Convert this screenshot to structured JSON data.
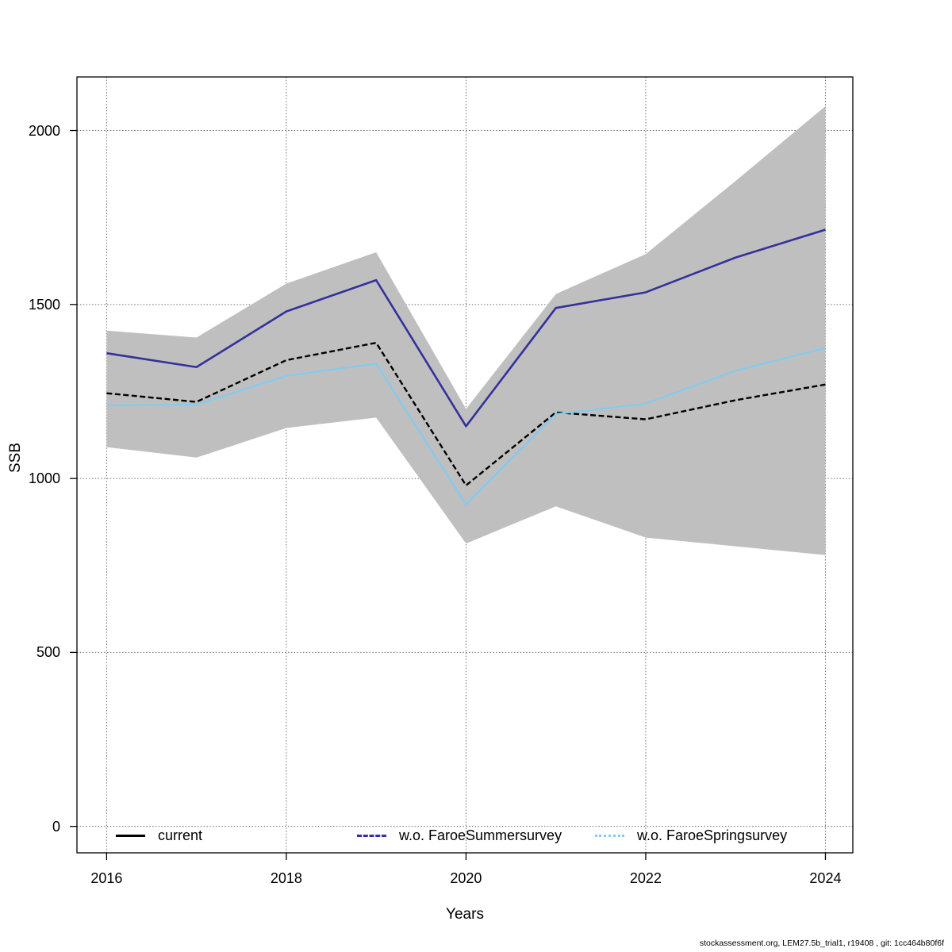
{
  "footer": {
    "text": "stockassessment.org, LEM27.5b_trial1, r19408 , git: 1cc464b80f6f"
  },
  "chart_data": {
    "type": "line",
    "title": "",
    "xlabel": "Years",
    "ylabel": "SSB",
    "x": [
      2016,
      2017,
      2018,
      2019,
      2020,
      2021,
      2022,
      2023,
      2024
    ],
    "series": [
      {
        "name": "current",
        "values": [
          1245,
          1220,
          1340,
          1390,
          980,
          1190,
          1170,
          1225,
          1270
        ],
        "color": "#000000",
        "line_style": "dashed",
        "legend_style": "solid"
      },
      {
        "name": "w.o. FaroeSummersurvey",
        "values": [
          1360,
          1320,
          1480,
          1570,
          1150,
          1490,
          1535,
          1635,
          1715
        ],
        "color": "#34319c",
        "line_style": "solid",
        "legend_style": "dashed"
      },
      {
        "name": "w.o. FaroeSpringsurvey",
        "values": [
          1210,
          1212,
          1295,
          1330,
          925,
          1185,
          1215,
          1310,
          1375
        ],
        "color": "#82cbf0",
        "line_style": "solid",
        "legend_style": "dotted"
      }
    ],
    "band": {
      "name": "confidence-band",
      "color": "#bfbfbf",
      "upper": [
        1425,
        1405,
        1560,
        1650,
        1200,
        1530,
        1645,
        1855,
        2070
      ],
      "lower": [
        1090,
        1060,
        1145,
        1175,
        813,
        920,
        830,
        805,
        780
      ]
    },
    "xlim": [
      2015.67,
      2024.305
    ],
    "ylim": [
      -76,
      2154
    ],
    "xticks": [
      2016,
      2018,
      2020,
      2022,
      2024
    ],
    "yticks": [
      0,
      500,
      1000,
      1500,
      2000
    ],
    "grid": "dotted",
    "grid_color": "#6e6e6e",
    "frame_color": "#000000",
    "legend_position": "bottom-inside"
  }
}
